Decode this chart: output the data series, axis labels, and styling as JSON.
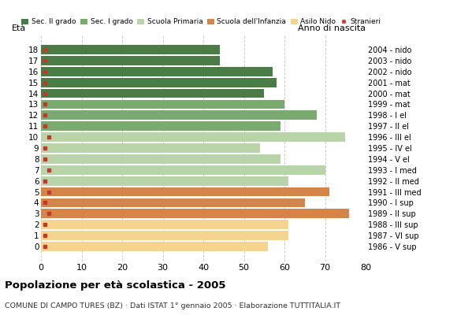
{
  "ages": [
    18,
    17,
    16,
    15,
    14,
    13,
    12,
    11,
    10,
    9,
    8,
    7,
    6,
    5,
    4,
    3,
    2,
    1,
    0
  ],
  "bar_values": [
    44,
    44,
    57,
    58,
    55,
    60,
    68,
    59,
    75,
    54,
    59,
    70,
    61,
    71,
    65,
    76,
    61,
    61,
    56
  ],
  "stranieri": [
    1,
    1,
    1,
    1,
    1,
    1,
    1,
    1,
    2,
    1,
    1,
    2,
    1,
    2,
    1,
    2,
    1,
    1,
    1
  ],
  "anno_nascita": [
    "1986 - V sup",
    "1987 - VI sup",
    "1988 - III sup",
    "1989 - II sup",
    "1990 - I sup",
    "1991 - III med",
    "1992 - II med",
    "1993 - I med",
    "1994 - V el",
    "1995 - IV el",
    "1996 - III el",
    "1997 - II el",
    "1998 - I el",
    "1999 - mat",
    "2000 - mat",
    "2001 - mat",
    "2002 - nido",
    "2003 - nido",
    "2004 - nido"
  ],
  "colors": {
    "sec2": "#4a7c45",
    "sec1": "#7aab6e",
    "primaria": "#b8d4a8",
    "infanzia": "#d4854a",
    "nido": "#f5d490"
  },
  "bar_colors": [
    "sec2",
    "sec2",
    "sec2",
    "sec2",
    "sec2",
    "sec1",
    "sec1",
    "sec1",
    "primaria",
    "primaria",
    "primaria",
    "primaria",
    "primaria",
    "infanzia",
    "infanzia",
    "infanzia",
    "nido",
    "nido",
    "nido"
  ],
  "legend_labels": [
    "Sec. II grado",
    "Sec. I grado",
    "Scuola Primaria",
    "Scuola dell'Infanzia",
    "Asilo Nido",
    "Stranieri"
  ],
  "legend_colors": [
    "#4a7c45",
    "#7aab6e",
    "#b8d4a8",
    "#d4854a",
    "#f5d490",
    "#c0392b"
  ],
  "title": "Popolazione per età scolastica - 2005",
  "subtitle": "COMUNE DI CAMPO TURES (BZ) · Dati ISTAT 1° gennaio 2005 · Elaborazione TUTTITALIA.IT",
  "ylabel_left": "Età",
  "ylabel_right": "Anno di nascita",
  "xlim": [
    0,
    80
  ],
  "xticks": [
    0,
    10,
    20,
    30,
    40,
    50,
    60,
    70,
    80
  ],
  "stranieri_color": "#c0392b"
}
